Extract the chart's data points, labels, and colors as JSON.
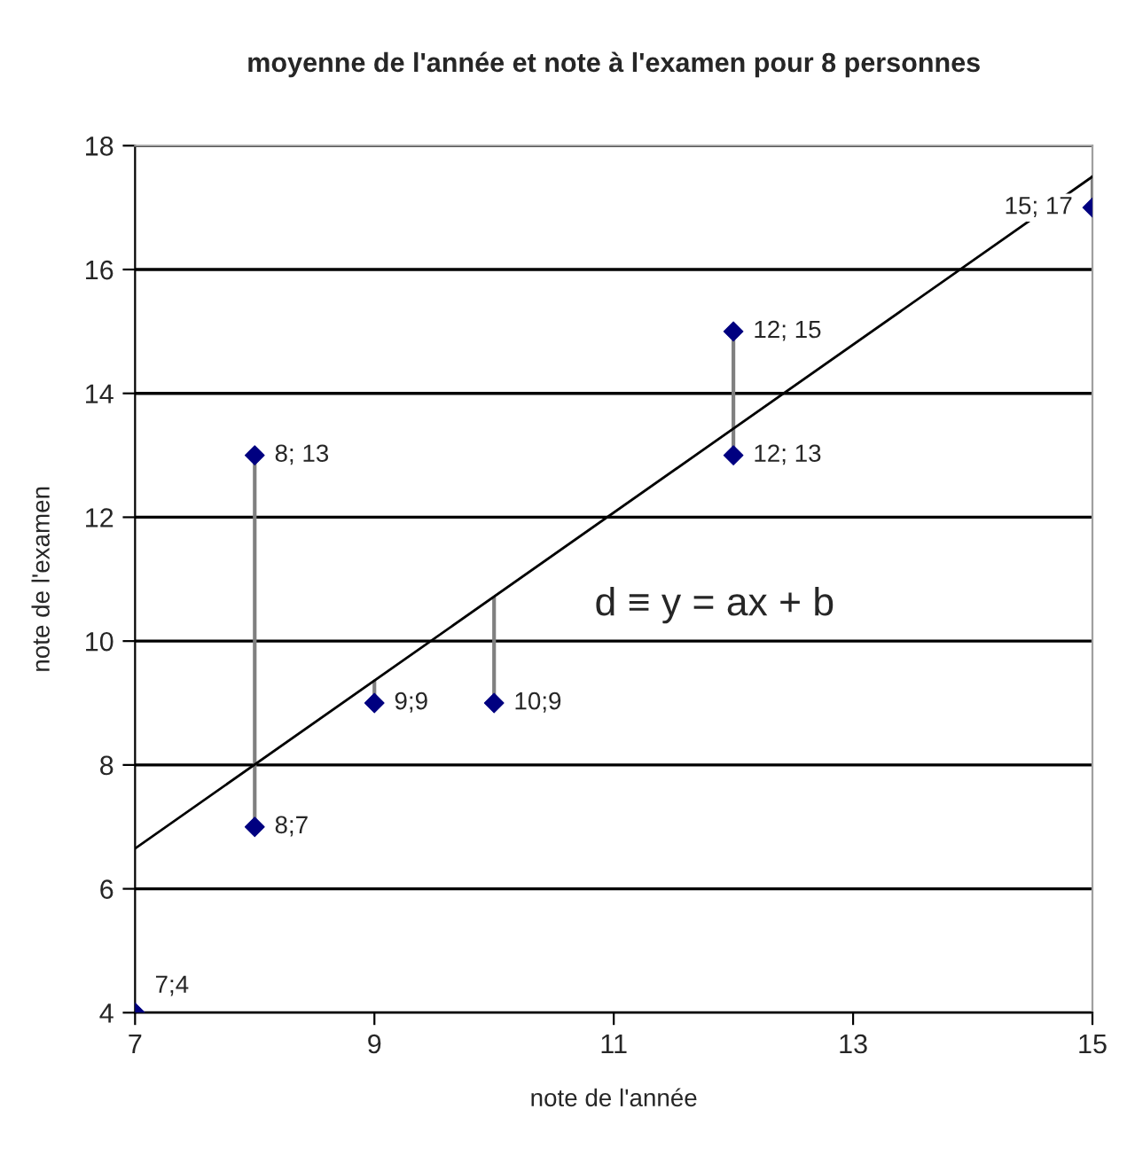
{
  "chart_data": {
    "type": "scatter",
    "title": "moyenne de l'année et note à l'examen pour 8 personnes",
    "xlabel": "note de l'année",
    "ylabel": "note de l'examen",
    "xlim": [
      7,
      15
    ],
    "xticks": [
      7,
      9,
      11,
      13,
      15
    ],
    "ylim": [
      4,
      18
    ],
    "yticks": [
      4,
      6,
      8,
      10,
      12,
      14,
      16,
      18
    ],
    "grid": "y",
    "legend": false,
    "series": [
      {
        "type": "line",
        "color": "#808080",
        "x": [
          8,
          8
        ],
        "values": [
          7,
          13
        ]
      },
      {
        "type": "line",
        "color": "#808080",
        "x": [
          9,
          9
        ],
        "values": [
          9,
          9.35
        ]
      },
      {
        "type": "line",
        "color": "#808080",
        "x": [
          10,
          10
        ],
        "values": [
          9,
          10.7
        ]
      },
      {
        "type": "line",
        "color": "#808080",
        "x": [
          12,
          12
        ],
        "values": [
          13,
          15
        ]
      },
      {
        "type": "line",
        "color": "#808080",
        "x": [
          15,
          15
        ],
        "values": [
          17,
          17.5
        ]
      },
      {
        "type": "line",
        "color": "#000000",
        "x": [
          7,
          15
        ],
        "values": [
          6.65,
          17.5
        ]
      },
      {
        "color": "#000080",
        "marker": "diamond",
        "x": [
          7,
          8,
          8,
          9,
          10,
          12,
          12,
          15
        ],
        "values": [
          4,
          7,
          13,
          9,
          9,
          13,
          15,
          17
        ],
        "value_labels": [
          "7;4",
          "8;7",
          "8; 13",
          "9;9",
          "10;9",
          "12; 13",
          "12; 15",
          "15; 17"
        ]
      }
    ],
    "annotations": [
      "d ≡ y = ax + b"
    ]
  }
}
